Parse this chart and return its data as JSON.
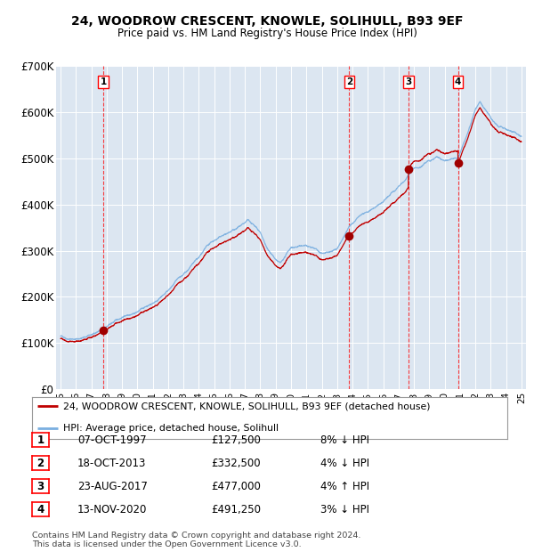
{
  "title1": "24, WOODROW CRESCENT, KNOWLE, SOLIHULL, B93 9EF",
  "title2": "Price paid vs. HM Land Registry's House Price Index (HPI)",
  "bg_color": "#dce6f1",
  "red_line_label": "24, WOODROW CRESCENT, KNOWLE, SOLIHULL, B93 9EF (detached house)",
  "blue_line_label": "HPI: Average price, detached house, Solihull",
  "transactions": [
    {
      "num": 1,
      "date": "07-OCT-1997",
      "price": "£127,500",
      "pct": "8% ↓ HPI",
      "year": 1997.78
    },
    {
      "num": 2,
      "date": "18-OCT-2013",
      "price": "£332,500",
      "pct": "4% ↓ HPI",
      "year": 2013.79
    },
    {
      "num": 3,
      "date": "23-AUG-2017",
      "price": "£477,000",
      "pct": "4% ↑ HPI",
      "year": 2017.64
    },
    {
      "num": 4,
      "date": "13-NOV-2020",
      "price": "£491,250",
      "pct": "3% ↓ HPI",
      "year": 2020.87
    }
  ],
  "t_prices": [
    127500,
    332500,
    477000,
    491250
  ],
  "footer1": "Contains HM Land Registry data © Crown copyright and database right 2024.",
  "footer2": "This data is licensed under the Open Government Licence v3.0.",
  "ylim": [
    0,
    700000
  ],
  "xlim_start": 1994.7,
  "xlim_end": 2025.3,
  "yticks": [
    0,
    100000,
    200000,
    300000,
    400000,
    500000,
    600000,
    700000
  ],
  "ytick_labels": [
    "£0",
    "£100K",
    "£200K",
    "£300K",
    "£400K",
    "£500K",
    "£600K",
    "£700K"
  ],
  "xticks": [
    1995,
    1996,
    1997,
    1998,
    1999,
    2000,
    2001,
    2002,
    2003,
    2004,
    2005,
    2006,
    2007,
    2008,
    2009,
    2010,
    2011,
    2012,
    2013,
    2014,
    2015,
    2016,
    2017,
    2018,
    2019,
    2020,
    2021,
    2022,
    2023,
    2024,
    2025
  ],
  "xtick_labels": [
    "95",
    "96",
    "97",
    "98",
    "99",
    "00",
    "01",
    "02",
    "03",
    "04",
    "05",
    "06",
    "07",
    "08",
    "09",
    "10",
    "11",
    "12",
    "13",
    "14",
    "15",
    "16",
    "17",
    "18",
    "19",
    "20",
    "21",
    "22",
    "23",
    "24",
    "25"
  ]
}
